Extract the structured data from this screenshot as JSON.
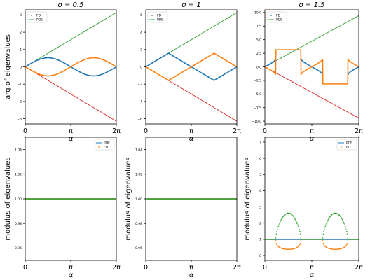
{
  "colors": {
    "blue": "#1f77b4",
    "orange": "#ff7f0e",
    "green": "#2ca02c",
    "red": "#d62728"
  },
  "labels": {
    "xlabel": "α",
    "ylabel_top": "arg of eigenvalues",
    "ylabel_bottom": "modulus of eigenvalues",
    "titles": [
      "σ = 0.5",
      "σ = 1",
      "σ = 1.5"
    ],
    "legend_fd": "FD",
    "legend_pde": "PDE"
  },
  "chart_data": [
    {
      "type": "line",
      "title": "σ = 0.5",
      "xlabel": "",
      "ylabel": "arg of eigenvalues",
      "xlim": [
        0,
        6.2832
      ],
      "ylim": [
        -3.3,
        3.3
      ],
      "xticks": [
        {
          "v": 0,
          "label": "0"
        },
        {
          "v": 3.1416,
          "label": "π"
        },
        {
          "v": 6.2832,
          "label": "2π"
        }
      ],
      "yticks": [
        -3,
        -2,
        -1,
        0,
        1,
        2,
        3
      ],
      "legend": {
        "position": "upper-left",
        "entries": [
          "FD",
          "PDE"
        ]
      },
      "series": [
        {
          "name": "PDE",
          "color": "green",
          "kind": "line",
          "fn": "alpha",
          "arg": 0.5
        },
        {
          "color": "red",
          "kind": "line",
          "fn": "neg_alpha",
          "arg": 0.5
        },
        {
          "color": "blue",
          "kind": "line",
          "fn": "fd_pos",
          "arg": 0.5
        },
        {
          "color": "orange",
          "kind": "line",
          "fn": "fd_neg",
          "arg": 0.5
        }
      ]
    },
    {
      "type": "line",
      "title": "σ = 1",
      "xlabel": "",
      "ylabel": "",
      "xlim": [
        0,
        6.2832
      ],
      "ylim": [
        -6.6,
        6.6
      ],
      "xticks": [
        {
          "v": 0,
          "label": "0"
        },
        {
          "v": 3.1416,
          "label": "π"
        },
        {
          "v": 6.2832,
          "label": "2π"
        }
      ],
      "yticks": [
        -6,
        -4,
        -2,
        0,
        2,
        4,
        6
      ],
      "legend": {
        "position": "upper-left",
        "entries": [
          "FD",
          "PDE"
        ]
      },
      "series": [
        {
          "name": "PDE",
          "color": "green",
          "kind": "line",
          "fn": "alpha",
          "arg": 1
        },
        {
          "color": "red",
          "kind": "line",
          "fn": "neg_alpha",
          "arg": 1
        },
        {
          "color": "blue",
          "kind": "line",
          "fn": "fd_pos",
          "arg": 1
        },
        {
          "color": "orange",
          "kind": "line",
          "fn": "fd_neg",
          "arg": 1
        }
      ]
    },
    {
      "type": "line",
      "title": "σ = 1.5",
      "xlabel": "",
      "ylabel": "",
      "xlim": [
        0,
        6.2832
      ],
      "ylim": [
        -10.5,
        10.5
      ],
      "xticks": [
        {
          "v": 0,
          "label": "0"
        },
        {
          "v": 3.1416,
          "label": "π"
        },
        {
          "v": 6.2832,
          "label": "2π"
        }
      ],
      "yticks": [
        -10,
        -7.5,
        -5,
        -2.5,
        0,
        2.5,
        5,
        7.5,
        10
      ],
      "yticklabels": [
        "−10.0",
        "−7.5",
        "−5.0",
        "−2.5",
        "0.0",
        "2.5",
        "5.0",
        "7.5",
        "10.0"
      ],
      "legend": {
        "position": "upper-left",
        "entries": [
          "FD",
          "PDE"
        ]
      },
      "series": [
        {
          "name": "PDE",
          "color": "green",
          "kind": "line",
          "fn": "alpha",
          "arg": 1.5
        },
        {
          "color": "red",
          "kind": "line",
          "fn": "neg_alpha",
          "arg": 1.5
        },
        {
          "color": "blue",
          "kind": "line",
          "fn": "fd_pos",
          "arg": 1.5
        },
        {
          "color": "orange",
          "kind": "line",
          "fn": "fd_neg",
          "arg": 1.5
        }
      ]
    },
    {
      "type": "scatter",
      "title": "",
      "xlabel": "α",
      "ylabel": "modulus of eigenvalues",
      "xlim": [
        0,
        6.2832
      ],
      "ylim": [
        0.95,
        1.05
      ],
      "xticks": [
        {
          "v": 0,
          "label": "0"
        },
        {
          "v": 3.1416,
          "label": "π"
        },
        {
          "v": 6.2832,
          "label": "2π"
        }
      ],
      "yticks": [
        0.96,
        0.98,
        1.0,
        1.02,
        1.04
      ],
      "yticklabels": [
        "0.96",
        "0.98",
        "1.00",
        "1.02",
        "1.04"
      ],
      "legend": {
        "position": "upper-right",
        "entries": [
          "PDE",
          "FD"
        ]
      },
      "series": [
        {
          "name": "PDE",
          "color": "blue",
          "kind": "line",
          "fn": "one",
          "arg": 0.5
        },
        {
          "name": "FD",
          "color": "orange",
          "kind": "dots",
          "fn": "mod_neg",
          "arg": 0.5
        },
        {
          "color": "green",
          "kind": "dots",
          "fn": "mod_pos",
          "arg": 0.5
        }
      ]
    },
    {
      "type": "scatter",
      "title": "",
      "xlabel": "α",
      "ylabel": "modulus of eigenvalues",
      "xlim": [
        0,
        6.2832
      ],
      "ylim": [
        0.95,
        1.05
      ],
      "xticks": [
        {
          "v": 0,
          "label": "0"
        },
        {
          "v": 3.1416,
          "label": "π"
        },
        {
          "v": 6.2832,
          "label": "2π"
        }
      ],
      "yticks": [
        0.96,
        0.98,
        1.0,
        1.02,
        1.04
      ],
      "yticklabels": [
        "0.96",
        "0.98",
        "1.00",
        "1.02",
        "1.04"
      ],
      "legend": {
        "position": "none",
        "entries": []
      },
      "series": [
        {
          "name": "PDE",
          "color": "blue",
          "kind": "line",
          "fn": "one",
          "arg": 1
        },
        {
          "color": "orange",
          "kind": "dots",
          "fn": "mod_neg",
          "arg": 1
        },
        {
          "color": "green",
          "kind": "dots",
          "fn": "mod_pos",
          "arg": 1
        }
      ]
    },
    {
      "type": "scatter",
      "title": "",
      "xlabel": "α",
      "ylabel": "modulus of eigenvalues",
      "xlim": [
        0,
        6.2832
      ],
      "ylim": [
        -0.3,
        7.3
      ],
      "xticks": [
        {
          "v": 0,
          "label": "0"
        },
        {
          "v": 3.1416,
          "label": "π"
        },
        {
          "v": 6.2832,
          "label": "2π"
        }
      ],
      "yticks": [
        0,
        1,
        2,
        3,
        4,
        5,
        6,
        7
      ],
      "legend": {
        "position": "upper-right",
        "entries": [
          "PDE",
          "FD"
        ]
      },
      "series": [
        {
          "name": "PDE",
          "color": "blue",
          "kind": "line",
          "fn": "one",
          "arg": 1.5
        },
        {
          "name": "FD",
          "color": "orange",
          "kind": "dots",
          "fn": "mod_neg",
          "arg": 1.5
        },
        {
          "color": "green",
          "kind": "dots",
          "fn": "mod_pos",
          "arg": 1.5
        }
      ]
    }
  ]
}
